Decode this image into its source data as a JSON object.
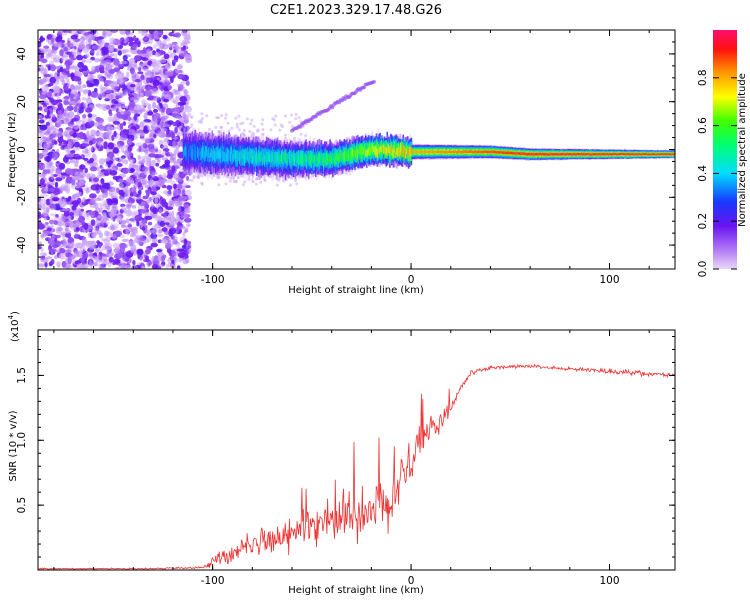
{
  "title": "C2E1.2023.329.17.48.G26",
  "chart_data": [
    {
      "type": "heatmap",
      "xlabel": "Height of straight line (km)",
      "ylabel": "Frequency (Hz)",
      "xlim": [
        -188,
        133
      ],
      "ylim": [
        -50,
        50
      ],
      "xticks": [
        -100,
        0,
        100
      ],
      "xtick_labels": [
        "-100",
        "0",
        "100"
      ],
      "yticks": [
        -40,
        -20,
        0,
        20,
        40
      ],
      "ytick_labels": [
        "-40",
        "-20",
        "0",
        "20",
        "40"
      ],
      "noise_region_x": [
        -188,
        -112
      ],
      "signal_track": {
        "x": [
          -115,
          -100,
          -80,
          -60,
          -40,
          -20,
          0,
          20,
          40,
          60,
          80,
          100,
          120,
          133
        ],
        "frequency_hz": [
          -1,
          -2,
          -3,
          -4,
          -4,
          0,
          -1,
          -1,
          -1,
          -2,
          -2,
          -2,
          -2,
          -2
        ],
        "peak_amplitude": [
          0.35,
          0.4,
          0.45,
          0.5,
          0.55,
          0.7,
          0.8,
          0.85,
          0.9,
          0.95,
          0.95,
          0.95,
          0.95,
          0.95
        ]
      },
      "colorbar": {
        "label": "Normalized spectral amplitude",
        "range": [
          0,
          1
        ],
        "ticks": [
          0.0,
          0.2,
          0.4,
          0.6,
          0.8
        ],
        "tick_labels": [
          "0.0",
          "0.2",
          "0.4",
          "0.6",
          "0.8"
        ],
        "colors": [
          "#e4d3f5",
          "#9b4cf5",
          "#2030ff",
          "#00e5ff",
          "#00ff40",
          "#ffff00",
          "#ff8000",
          "#ff0020",
          "#ff1070"
        ]
      }
    },
    {
      "type": "line",
      "xlabel": "Height of straight line (km)",
      "ylabel": "SNR (10 * v/v)",
      "y_multiplier": "(x10",
      "y_multiplier_exp": "4",
      "y_multiplier_close": ")",
      "xlim": [
        -188,
        133
      ],
      "ylim": [
        0,
        18500
      ],
      "xticks": [
        -100,
        0,
        100
      ],
      "xtick_labels": [
        "-100",
        "0",
        "100"
      ],
      "yticks": [
        5000,
        10000,
        15000
      ],
      "ytick_labels": [
        "0.5",
        "1.0",
        "1.5"
      ],
      "color": "#ee3333",
      "series_envelope": {
        "x": [
          -188,
          -160,
          -130,
          -105,
          -100,
          -90,
          -80,
          -70,
          -60,
          -50,
          -40,
          -30,
          -20,
          -15,
          -10,
          -5,
          0,
          5,
          10,
          15,
          20,
          25,
          30,
          40,
          60,
          80,
          100,
          120,
          133
        ],
        "mean": [
          100,
          100,
          100,
          200,
          600,
          1400,
          2000,
          2400,
          2800,
          3300,
          3700,
          4100,
          4500,
          4700,
          5200,
          7000,
          8500,
          10000,
          11000,
          11500,
          12500,
          14000,
          15200,
          15600,
          15700,
          15500,
          15300,
          15100,
          15000
        ],
        "spread": [
          80,
          80,
          80,
          150,
          800,
          1500,
          1800,
          2100,
          2400,
          2700,
          3000,
          3300,
          3600,
          3500,
          3200,
          3000,
          2800,
          2600,
          2400,
          1800,
          900,
          500,
          300,
          250,
          250,
          250,
          300,
          300,
          250
        ]
      }
    }
  ]
}
